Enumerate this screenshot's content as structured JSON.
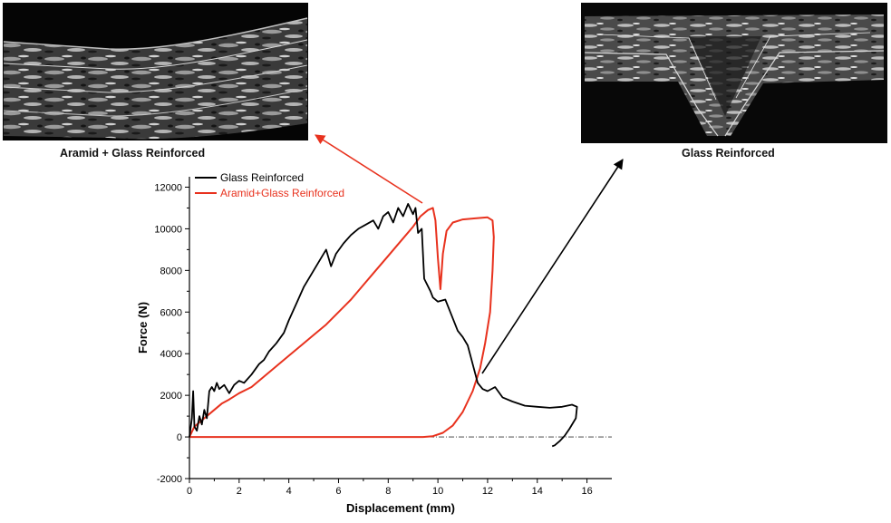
{
  "figure": {
    "left_image_caption": "Aramid + Glass Reinforced",
    "right_image_caption": "Glass Reinforced"
  },
  "colors": {
    "glass": "#000000",
    "aramid_glass": "#e8321e",
    "axis": "#000000",
    "zero_line": "#333333"
  },
  "chart_data": {
    "type": "line",
    "xlabel": "Displacement (mm)",
    "ylabel": "Force (N)",
    "xlim": [
      0,
      17
    ],
    "ylim": [
      -2000,
      12500
    ],
    "xticks": [
      0,
      2,
      4,
      6,
      8,
      10,
      12,
      14,
      16
    ],
    "yticks": [
      -2000,
      0,
      2000,
      4000,
      6000,
      8000,
      10000,
      12000
    ],
    "grid": false,
    "legend_position": "top-left",
    "zero_reference_line": {
      "y": 0,
      "x_range": [
        0,
        17.0
      ],
      "style": "dash-dot"
    },
    "series": [
      {
        "name": "Glass Reinforced",
        "color": "#000000",
        "points": [
          [
            0,
            0
          ],
          [
            0.1,
            900
          ],
          [
            0.15,
            2200
          ],
          [
            0.2,
            500
          ],
          [
            0.3,
            300
          ],
          [
            0.4,
            1000
          ],
          [
            0.5,
            600
          ],
          [
            0.6,
            1300
          ],
          [
            0.7,
            900
          ],
          [
            0.8,
            2200
          ],
          [
            0.9,
            2400
          ],
          [
            1.0,
            2200
          ],
          [
            1.1,
            2600
          ],
          [
            1.2,
            2300
          ],
          [
            1.4,
            2500
          ],
          [
            1.6,
            2100
          ],
          [
            1.8,
            2500
          ],
          [
            2.0,
            2700
          ],
          [
            2.2,
            2600
          ],
          [
            2.5,
            3000
          ],
          [
            2.8,
            3500
          ],
          [
            3.0,
            3700
          ],
          [
            3.2,
            4100
          ],
          [
            3.5,
            4500
          ],
          [
            3.8,
            5000
          ],
          [
            4.0,
            5600
          ],
          [
            4.3,
            6400
          ],
          [
            4.6,
            7200
          ],
          [
            5.0,
            8000
          ],
          [
            5.3,
            8600
          ],
          [
            5.5,
            9000
          ],
          [
            5.7,
            8200
          ],
          [
            5.9,
            8800
          ],
          [
            6.2,
            9300
          ],
          [
            6.5,
            9700
          ],
          [
            6.8,
            10000
          ],
          [
            7.1,
            10200
          ],
          [
            7.4,
            10400
          ],
          [
            7.6,
            10000
          ],
          [
            7.8,
            10600
          ],
          [
            8.0,
            10800
          ],
          [
            8.2,
            10300
          ],
          [
            8.4,
            11000
          ],
          [
            8.6,
            10600
          ],
          [
            8.8,
            11200
          ],
          [
            9.0,
            10700
          ],
          [
            9.1,
            11000
          ],
          [
            9.2,
            9800
          ],
          [
            9.35,
            10000
          ],
          [
            9.45,
            7600
          ],
          [
            9.7,
            7000
          ],
          [
            9.8,
            6700
          ],
          [
            10.0,
            6500
          ],
          [
            10.3,
            6600
          ],
          [
            10.5,
            6000
          ],
          [
            10.8,
            5100
          ],
          [
            11.0,
            4800
          ],
          [
            11.2,
            4400
          ],
          [
            11.4,
            3500
          ],
          [
            11.6,
            2600
          ],
          [
            11.8,
            2300
          ],
          [
            12.0,
            2200
          ],
          [
            12.3,
            2400
          ],
          [
            12.6,
            1900
          ],
          [
            13.0,
            1700
          ],
          [
            13.5,
            1500
          ],
          [
            14.0,
            1450
          ],
          [
            14.5,
            1400
          ],
          [
            15.0,
            1450
          ],
          [
            15.4,
            1550
          ],
          [
            15.6,
            1450
          ],
          [
            15.55,
            900
          ],
          [
            15.3,
            400
          ],
          [
            15.1,
            50
          ],
          [
            14.9,
            -200
          ],
          [
            14.7,
            -400
          ],
          [
            14.6,
            -450
          ]
        ]
      },
      {
        "name": "Aramid+Glass Reinforced",
        "color": "#e8321e",
        "points": [
          [
            0,
            0
          ],
          [
            0.2,
            500
          ],
          [
            0.4,
            700
          ],
          [
            0.6,
            900
          ],
          [
            0.8,
            1100
          ],
          [
            1.0,
            1300
          ],
          [
            1.3,
            1600
          ],
          [
            1.6,
            1800
          ],
          [
            2.0,
            2100
          ],
          [
            2.5,
            2400
          ],
          [
            3.0,
            2900
          ],
          [
            3.5,
            3400
          ],
          [
            4.0,
            3900
          ],
          [
            4.5,
            4400
          ],
          [
            5.0,
            4900
          ],
          [
            5.5,
            5400
          ],
          [
            6.0,
            6000
          ],
          [
            6.5,
            6600
          ],
          [
            7.0,
            7300
          ],
          [
            7.5,
            8000
          ],
          [
            8.0,
            8700
          ],
          [
            8.5,
            9400
          ],
          [
            9.0,
            10100
          ],
          [
            9.3,
            10600
          ],
          [
            9.6,
            10900
          ],
          [
            9.8,
            11000
          ],
          [
            9.9,
            10400
          ],
          [
            10.0,
            8600
          ],
          [
            10.1,
            7100
          ],
          [
            10.2,
            8800
          ],
          [
            10.35,
            9900
          ],
          [
            10.6,
            10300
          ],
          [
            11.0,
            10450
          ],
          [
            11.5,
            10500
          ],
          [
            12.0,
            10550
          ],
          [
            12.2,
            10400
          ],
          [
            12.25,
            9600
          ],
          [
            12.2,
            8000
          ],
          [
            12.1,
            6000
          ],
          [
            11.9,
            4500
          ],
          [
            11.7,
            3300
          ],
          [
            11.4,
            2200
          ],
          [
            11.0,
            1200
          ],
          [
            10.6,
            550
          ],
          [
            10.2,
            200
          ],
          [
            9.8,
            40
          ],
          [
            9.4,
            0
          ],
          [
            0,
            0
          ]
        ]
      }
    ]
  }
}
